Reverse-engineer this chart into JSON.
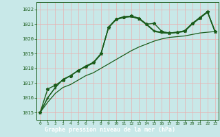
{
  "xlabel": "Graphe pression niveau de la mer (hPa)",
  "xlim": [
    -0.5,
    23.5
  ],
  "ylim": [
    1014.5,
    1022.5
  ],
  "yticks": [
    1015,
    1016,
    1017,
    1018,
    1019,
    1020,
    1021,
    1022
  ],
  "xticks": [
    0,
    1,
    2,
    3,
    4,
    5,
    6,
    7,
    8,
    9,
    10,
    11,
    12,
    13,
    14,
    15,
    16,
    17,
    18,
    19,
    20,
    21,
    22,
    23
  ],
  "bg_color": "#c8e8e8",
  "grid_color": "#e8b0b0",
  "line_color": "#1a5c1a",
  "label_bg": "#1a5c1a",
  "label_fg": "#ffffff",
  "line1_x": [
    0,
    1,
    2,
    3,
    4,
    5,
    6,
    7,
    8,
    9,
    10,
    11,
    12,
    13,
    14,
    15,
    16,
    17,
    18,
    19,
    20,
    21,
    22,
    23
  ],
  "line1_y": [
    1015.0,
    1016.6,
    1016.85,
    1017.2,
    1017.5,
    1017.85,
    1018.15,
    1018.4,
    1019.0,
    1020.8,
    1021.35,
    1021.5,
    1021.55,
    1021.4,
    1021.0,
    1021.05,
    1020.5,
    1020.4,
    1020.45,
    1020.55,
    1021.05,
    1021.45,
    1021.85,
    1020.5
  ],
  "line2_x": [
    0,
    1,
    2,
    3,
    4,
    5,
    6,
    7,
    8,
    9,
    10,
    11,
    12,
    13,
    14,
    15,
    16,
    17,
    18,
    19,
    20,
    21,
    22,
    23
  ],
  "line2_y": [
    1015.0,
    1016.0,
    1016.7,
    1017.25,
    1017.5,
    1017.85,
    1018.15,
    1018.4,
    1019.0,
    1020.8,
    1021.35,
    1021.5,
    1021.55,
    1021.4,
    1021.0,
    1020.55,
    1020.45,
    1020.4,
    1020.45,
    1020.55,
    1021.05,
    1021.45,
    1021.85,
    1020.5
  ],
  "line3_x": [
    0,
    1,
    2,
    3,
    4,
    5,
    6,
    7,
    8,
    9,
    10,
    11,
    12,
    13,
    14,
    15,
    16,
    17,
    18,
    19,
    20,
    21,
    22,
    23
  ],
  "line3_y": [
    1015.0,
    1015.7,
    1016.3,
    1016.7,
    1016.9,
    1017.2,
    1017.5,
    1017.7,
    1018.0,
    1018.3,
    1018.6,
    1018.9,
    1019.2,
    1019.45,
    1019.65,
    1019.85,
    1020.0,
    1020.1,
    1020.15,
    1020.2,
    1020.3,
    1020.4,
    1020.45,
    1020.5
  ],
  "line4_x": [
    0,
    1,
    2,
    3,
    4,
    5,
    6,
    7,
    8,
    9,
    10,
    11,
    12,
    13,
    14,
    15,
    16,
    17,
    18,
    19,
    20,
    21,
    22,
    23
  ],
  "line4_y": [
    1015.0,
    1016.0,
    1016.7,
    1017.25,
    1017.5,
    1017.85,
    1018.1,
    1018.35,
    1018.95,
    1020.75,
    1021.3,
    1021.45,
    1021.5,
    1021.35,
    1020.95,
    1020.5,
    1020.4,
    1020.38,
    1020.42,
    1020.5,
    1021.0,
    1021.4,
    1021.8,
    1020.45
  ]
}
